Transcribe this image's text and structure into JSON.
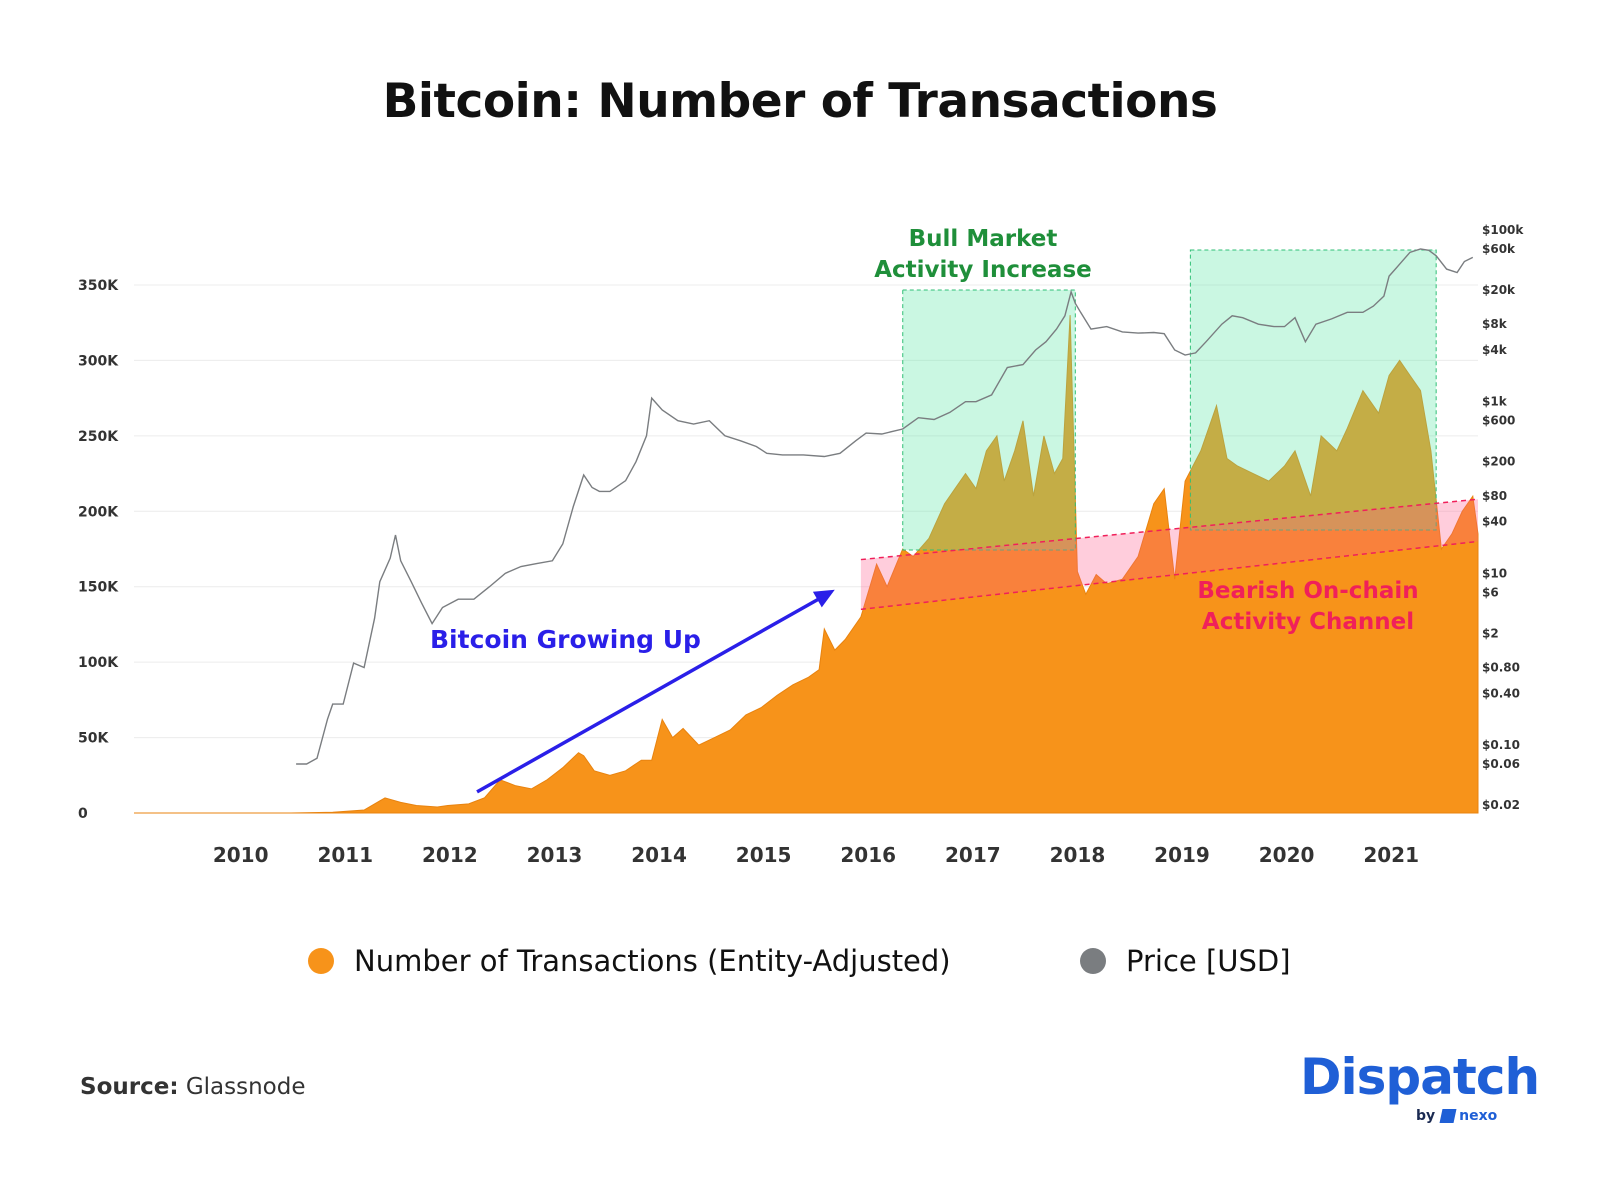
{
  "title": "Bitcoin: Number of Transactions",
  "chart_data": {
    "type": "area",
    "title": "Bitcoin: Number of Transactions",
    "x_ticks": [
      "2010",
      "2011",
      "2012",
      "2013",
      "2014",
      "2015",
      "2016",
      "2017",
      "2018",
      "2019",
      "2020",
      "2021"
    ],
    "x_range": [
      2009.0,
      2021.85
    ],
    "y_left": {
      "ticks": [
        "0",
        "50K",
        "100K",
        "150K",
        "200K",
        "250K",
        "300K",
        "350K"
      ],
      "values": [
        0,
        50000,
        100000,
        150000,
        200000,
        250000,
        300000,
        350000
      ],
      "range": [
        0,
        350000
      ]
    },
    "y_right": {
      "scale": "log",
      "ticks": [
        "$0.02",
        "$0.06",
        "$0.10",
        "$0.40",
        "$0.80",
        "$2",
        "$6",
        "$10",
        "$40",
        "$80",
        "$200",
        "$600",
        "$1k",
        "$4k",
        "$8k",
        "$20k",
        "$60k",
        "$100k"
      ],
      "values": [
        0.02,
        0.06,
        0.1,
        0.4,
        0.8,
        2,
        6,
        10,
        40,
        80,
        200,
        600,
        1000,
        4000,
        8000,
        20000,
        60000,
        100000
      ],
      "range": [
        0.02,
        100000
      ]
    },
    "series": [
      {
        "name": "Number of Transactions (Entity-Adjusted)",
        "color": "#f7931a",
        "axis": "left",
        "x": [
          2009.0,
          2010.5,
          2010.9,
          2011.2,
          2011.4,
          2011.55,
          2011.7,
          2011.9,
          2012.0,
          2012.2,
          2012.35,
          2012.5,
          2012.65,
          2012.8,
          2012.95,
          2013.1,
          2013.25,
          2013.3,
          2013.4,
          2013.55,
          2013.7,
          2013.85,
          2013.95,
          2014.05,
          2014.15,
          2014.25,
          2014.4,
          2014.55,
          2014.7,
          2014.85,
          2015.0,
          2015.15,
          2015.3,
          2015.45,
          2015.55,
          2015.6,
          2015.7,
          2015.8,
          2015.95,
          2016.1,
          2016.2,
          2016.35,
          2016.45,
          2016.6,
          2016.75,
          2016.85,
          2016.95,
          2017.05,
          2017.15,
          2017.25,
          2017.32,
          2017.42,
          2017.5,
          2017.6,
          2017.7,
          2017.8,
          2017.88,
          2017.95,
          2018.02,
          2018.1,
          2018.2,
          2018.3,
          2018.45,
          2018.6,
          2018.75,
          2018.85,
          2018.95,
          2019.05,
          2019.2,
          2019.35,
          2019.45,
          2019.55,
          2019.7,
          2019.85,
          2020.0,
          2020.1,
          2020.25,
          2020.35,
          2020.5,
          2020.6,
          2020.75,
          2020.9,
          2021.0,
          2021.1,
          2021.2,
          2021.3,
          2021.4,
          2021.5,
          2021.6,
          2021.7,
          2021.8,
          2021.85
        ],
        "values": [
          0,
          0,
          500,
          2000,
          10000,
          7000,
          5000,
          4000,
          5000,
          6000,
          10000,
          22000,
          18000,
          16000,
          22000,
          30000,
          40000,
          38000,
          28000,
          25000,
          28000,
          35000,
          35000,
          62000,
          50000,
          56000,
          45000,
          50000,
          55000,
          65000,
          70000,
          78000,
          85000,
          90000,
          95000,
          122000,
          108000,
          115000,
          130000,
          165000,
          150000,
          175000,
          170000,
          182000,
          205000,
          215000,
          225000,
          215000,
          240000,
          250000,
          220000,
          240000,
          260000,
          210000,
          250000,
          225000,
          235000,
          330000,
          160000,
          145000,
          158000,
          152000,
          155000,
          170000,
          205000,
          215000,
          155000,
          220000,
          240000,
          270000,
          235000,
          230000,
          225000,
          220000,
          230000,
          240000,
          210000,
          250000,
          240000,
          255000,
          280000,
          265000,
          290000,
          300000,
          290000,
          280000,
          240000,
          175000,
          185000,
          200000,
          210000,
          185000
        ]
      },
      {
        "name": "Price [USD]",
        "color": "#7a7d80",
        "axis": "right",
        "x": [
          2010.55,
          2010.65,
          2010.75,
          2010.85,
          2010.9,
          2011.0,
          2011.1,
          2011.2,
          2011.3,
          2011.35,
          2011.45,
          2011.5,
          2011.55,
          2011.65,
          2011.75,
          2011.85,
          2011.95,
          2012.1,
          2012.25,
          2012.4,
          2012.55,
          2012.7,
          2012.85,
          2013.0,
          2013.1,
          2013.2,
          2013.3,
          2013.38,
          2013.45,
          2013.55,
          2013.7,
          2013.8,
          2013.9,
          2013.95,
          2014.05,
          2014.2,
          2014.35,
          2014.5,
          2014.65,
          2014.8,
          2014.95,
          2015.05,
          2015.2,
          2015.4,
          2015.6,
          2015.75,
          2015.9,
          2016.0,
          2016.15,
          2016.35,
          2016.5,
          2016.65,
          2016.8,
          2016.95,
          2017.05,
          2017.2,
          2017.35,
          2017.5,
          2017.62,
          2017.72,
          2017.82,
          2017.9,
          2017.96,
          2018.0,
          2018.05,
          2018.15,
          2018.3,
          2018.45,
          2018.6,
          2018.75,
          2018.85,
          2018.95,
          2019.05,
          2019.15,
          2019.25,
          2019.4,
          2019.5,
          2019.6,
          2019.75,
          2019.9,
          2020.0,
          2020.1,
          2020.2,
          2020.3,
          2020.45,
          2020.6,
          2020.75,
          2020.85,
          2020.95,
          2021.0,
          2021.1,
          2021.2,
          2021.3,
          2021.38,
          2021.45,
          2021.55,
          2021.65,
          2021.72,
          2021.8
        ],
        "values": [
          0.06,
          0.06,
          0.07,
          0.2,
          0.3,
          0.3,
          0.9,
          0.8,
          3,
          8,
          15,
          28,
          14,
          8,
          4.5,
          2.6,
          4,
          5,
          5,
          7,
          10,
          12,
          13,
          14,
          22,
          60,
          140,
          100,
          90,
          90,
          120,
          200,
          400,
          1100,
          800,
          600,
          550,
          600,
          400,
          350,
          300,
          250,
          240,
          240,
          230,
          250,
          350,
          430,
          420,
          480,
          650,
          620,
          750,
          1000,
          1000,
          1200,
          2500,
          2700,
          4000,
          5000,
          7000,
          10000,
          19000,
          14000,
          11000,
          7000,
          7500,
          6500,
          6300,
          6400,
          6200,
          4000,
          3500,
          3700,
          5000,
          8000,
          10000,
          9500,
          8000,
          7500,
          7500,
          9500,
          5000,
          8000,
          9200,
          11000,
          11000,
          13000,
          17000,
          29000,
          40000,
          55000,
          60000,
          58000,
          50000,
          35000,
          32000,
          43000,
          48000
        ]
      }
    ],
    "annotations": [
      {
        "lines": [
          "Bull Market",
          "Activity Increase"
        ],
        "color": "#1f8f3a"
      },
      {
        "lines": [
          "Bitcoin Growing Up"
        ],
        "color": "#2a1fe8"
      },
      {
        "lines": [
          "Bearish On-chain",
          "Activity Channel"
        ],
        "color": "#f0205a"
      }
    ],
    "highlight_ranges": [
      {
        "kind": "bull-market",
        "x": [
          2016.35,
          2018.0
        ],
        "color": "#5be6a6"
      },
      {
        "kind": "bull-market",
        "x": [
          2019.1,
          2021.45
        ],
        "color": "#5be6a6"
      }
    ],
    "channel": {
      "kind": "bearish-channel",
      "x": [
        2015.95,
        2021.85
      ],
      "lower": [
        135000,
        180000
      ],
      "upper": [
        168000,
        208000
      ],
      "color": "#ff5a8a"
    },
    "growth_arrow": {
      "from": [
        2012.28,
        14000
      ],
      "to": [
        2015.7,
        148000
      ],
      "color": "#2a1fe8"
    },
    "legend_position": "bottom",
    "grid": true
  },
  "legend": {
    "items": [
      {
        "label": "Number of Transactions (Entity-Adjusted)",
        "color": "#f7931a"
      },
      {
        "label": "Price [USD]",
        "color": "#7a7d80"
      }
    ]
  },
  "source": {
    "label": "Source:",
    "value": "Glassnode"
  },
  "branding": {
    "main": "Dispatch",
    "by": "by",
    "partner": "nexo"
  }
}
